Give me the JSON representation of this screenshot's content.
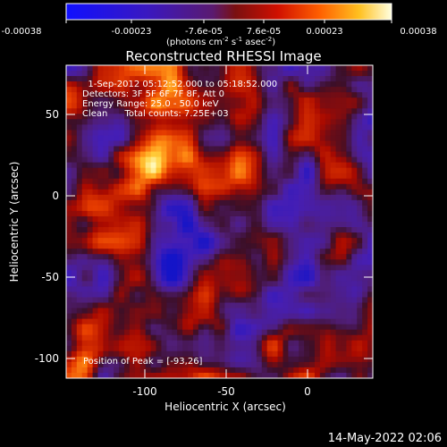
{
  "colorbar": {
    "ticks": [
      "-0.00038",
      "-0.00023",
      "-7.6e-05",
      "7.6e-05",
      "0.00023",
      "0.00038"
    ],
    "units_main": "(photons cm",
    "units_sup1": "-2",
    "units_mid1": " s",
    "units_sup2": "-1",
    "units_mid2": " asec",
    "units_sup3": "-2",
    "units_end": ")"
  },
  "plot": {
    "title": "Reconstructed RHESSI Image",
    "xlabel": "Heliocentric X (arcsec)",
    "ylabel": "Heliocentric Y (arcsec)",
    "xticks": [
      "-100",
      "-50",
      "0"
    ],
    "yticks": [
      "50",
      "0",
      "-50",
      "-100"
    ],
    "info_lines": [
      "  1-Sep-2012 05:12:52.000 to 05:18:52.000",
      "Detectors: 3F 5F 6F 7F 8F, Att 0",
      "Energy Range: 25.0 - 50.0 keV",
      "Clean      Total counts: 7.25E+03"
    ],
    "peak_label": "Position of Peak = [-93,26]"
  },
  "footer": {
    "timestamp": "14-May-2022 02:06"
  },
  "colors": {
    "bg": "#000000",
    "text": "#ffffff"
  }
}
